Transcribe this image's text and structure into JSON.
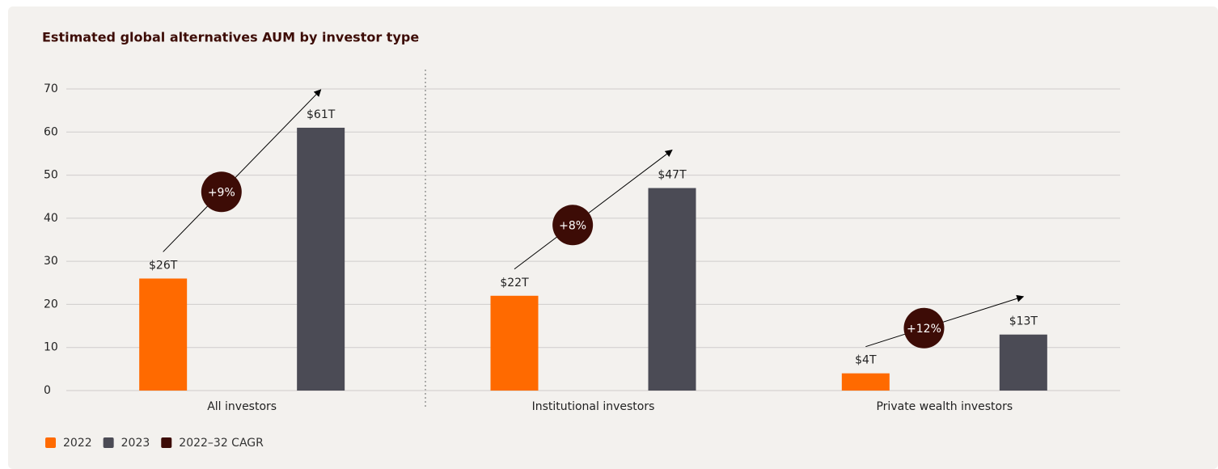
{
  "chart_data": {
    "type": "bar",
    "title": "Estimated global alternatives AUM by investor type",
    "categories": [
      "All investors",
      "Institutional investors",
      "Private wealth investors"
    ],
    "series": [
      {
        "name": "2022",
        "color": "#ff6a00",
        "values": [
          26,
          22,
          4
        ],
        "value_labels": [
          "$26T",
          "$22T",
          "$4T"
        ]
      },
      {
        "name": "2023",
        "color": "#4b4b55",
        "values": [
          61,
          47,
          13
        ],
        "value_labels": [
          "$61T",
          "$47T",
          "$13T"
        ]
      },
      {
        "name": "2022–32 CAGR",
        "color": "#3d0c06",
        "values": [
          9,
          8,
          12
        ],
        "value_labels": [
          "+9%",
          "+8%",
          "+12%"
        ]
      }
    ],
    "ylim": [
      0,
      70
    ],
    "yticks": [
      0,
      10,
      20,
      30,
      40,
      50,
      60,
      70
    ],
    "grid": true
  }
}
